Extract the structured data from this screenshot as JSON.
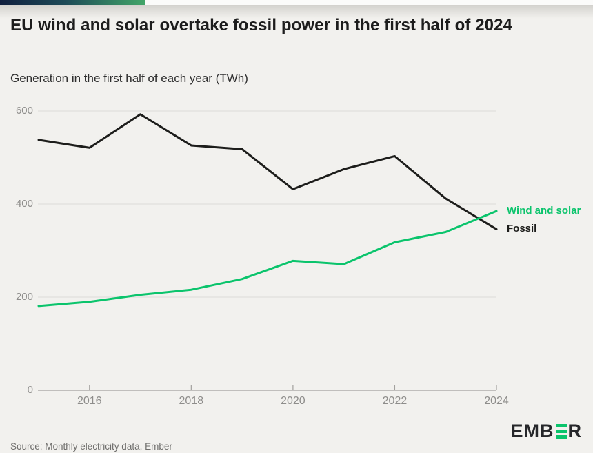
{
  "brand": {
    "accent_bar_gradient_start": "#101f3e",
    "accent_bar_gradient_end": "#42a569",
    "green": "#0bc46c",
    "dark": "#1d1d1b"
  },
  "header": {
    "title": "EU wind and solar overtake fossil power in the first half of 2024",
    "subtitle": "Generation in the first half of each year (TWh)"
  },
  "chart_data": {
    "type": "line",
    "x": [
      2015,
      2016,
      2017,
      2018,
      2019,
      2020,
      2021,
      2022,
      2023,
      2024
    ],
    "series": [
      {
        "name": "Fossil",
        "color": "#1d1d1b",
        "values": [
          538,
          521,
          593,
          526,
          518,
          432,
          475,
          503,
          412,
          346
        ]
      },
      {
        "name": "Wind and solar",
        "color": "#0bc46c",
        "values": [
          181,
          190,
          205,
          216,
          239,
          278,
          271,
          318,
          340,
          385
        ]
      }
    ],
    "ylim": [
      0,
      620
    ],
    "yticks": [
      0,
      200,
      400,
      600
    ],
    "ytick_labels": [
      "0",
      "200",
      "400",
      "600"
    ],
    "xticks": [
      2016,
      2018,
      2020,
      2022,
      2024
    ],
    "xtick_labels": [
      "2016",
      "2018",
      "2020",
      "2022",
      "2024"
    ],
    "grid": "horizontal",
    "gridline_color": "#dcdbd8",
    "axis_color": "#a3a19e",
    "legend_position": "right-of-line-ends"
  },
  "footer": {
    "source": "Source: Monthly electricity data, Ember",
    "logo_prefix": "EMB",
    "logo_suffix": "R",
    "logo_bars_icon": "three-green-bars"
  }
}
